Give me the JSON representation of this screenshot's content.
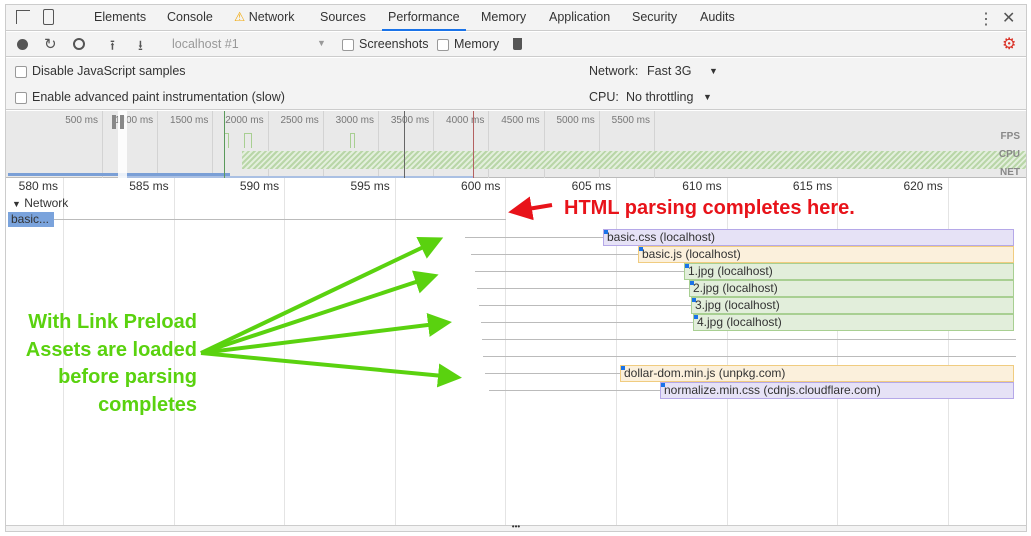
{
  "tabs": [
    {
      "label": "Elements"
    },
    {
      "label": "Console"
    },
    {
      "label": "Network",
      "warning": true
    },
    {
      "label": "Sources"
    },
    {
      "label": "Performance",
      "active": true
    },
    {
      "label": "Memory"
    },
    {
      "label": "Application"
    },
    {
      "label": "Security"
    },
    {
      "label": "Audits"
    }
  ],
  "toolbar": {
    "target": "localhost #1",
    "screenshots": "Screenshots",
    "memory": "Memory"
  },
  "settings": {
    "disable_js": "Disable JavaScript samples",
    "paint": "Enable advanced paint instrumentation (slow)",
    "network_label": "Network:",
    "network_value": "Fast 3G",
    "cpu_label": "CPU:",
    "cpu_value": "No throttling"
  },
  "overview": {
    "ticks": [
      "500 ms",
      "1000 ms",
      "1500 ms",
      "2000 ms",
      "2500 ms",
      "3000 ms",
      "3500 ms",
      "4000 ms",
      "4500 ms",
      "5000 ms",
      "5500 ms"
    ],
    "fps": "FPS",
    "cpu": "CPU",
    "net": "NET"
  },
  "ruler": [
    "580 ms",
    "585 ms",
    "590 ms",
    "595 ms",
    "600 ms",
    "605 ms",
    "610 ms",
    "615 ms",
    "620 ms"
  ],
  "network": {
    "title": "Network",
    "basic": "basic...",
    "requests": [
      {
        "label": "basic.css (localhost)",
        "type": "css"
      },
      {
        "label": "basic.js (localhost)",
        "type": "js"
      },
      {
        "label": "1.jpg (localhost)",
        "type": "img"
      },
      {
        "label": "2.jpg (localhost)",
        "type": "img"
      },
      {
        "label": "3.jpg (localhost)",
        "type": "img"
      },
      {
        "label": "4.jpg (localhost)",
        "type": "img"
      },
      {
        "label": "",
        "type": "none"
      },
      {
        "label": "",
        "type": "none"
      },
      {
        "label": "dollar-dom.min.js (unpkg.com)",
        "type": "js"
      },
      {
        "label": "normalize.min.css (cdnjs.cloudflare.com)",
        "type": "css"
      }
    ]
  },
  "annotations": {
    "red": "HTML parsing completes here.",
    "green": [
      "With Link Preload",
      "Assets  are loaded",
      "before parsing",
      "completes"
    ]
  },
  "colors": {
    "css": "#e6e2f6",
    "js": "#fbf0dc",
    "img": "#e2eedb",
    "red": "#e8131a",
    "green": "#5ad20f",
    "accent": "#1a73e8"
  }
}
